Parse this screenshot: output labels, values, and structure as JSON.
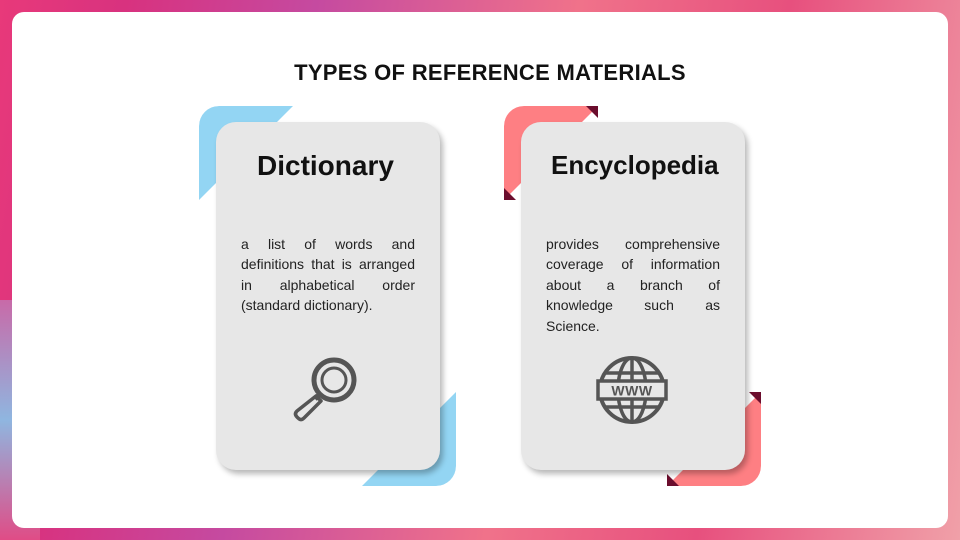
{
  "slide": {
    "title": "TYPES OF REFERENCE MATERIALS"
  },
  "cards": [
    {
      "title": "Dictionary",
      "description": "a list of words and definitions that is arranged in alphabetical order (standard dictionary).",
      "icon": "magnifying-glass-icon",
      "accent_color": "#93d5f3",
      "accent_dark_color": "#93d5f3"
    },
    {
      "title": "Encyclopedia",
      "description": "provides comprehensive coverage of information about a branch of knowledge such as Science.",
      "icon": "globe-www-icon",
      "accent_color": "#fe7f83",
      "accent_dark_color": "#6b0d2d"
    }
  ]
}
